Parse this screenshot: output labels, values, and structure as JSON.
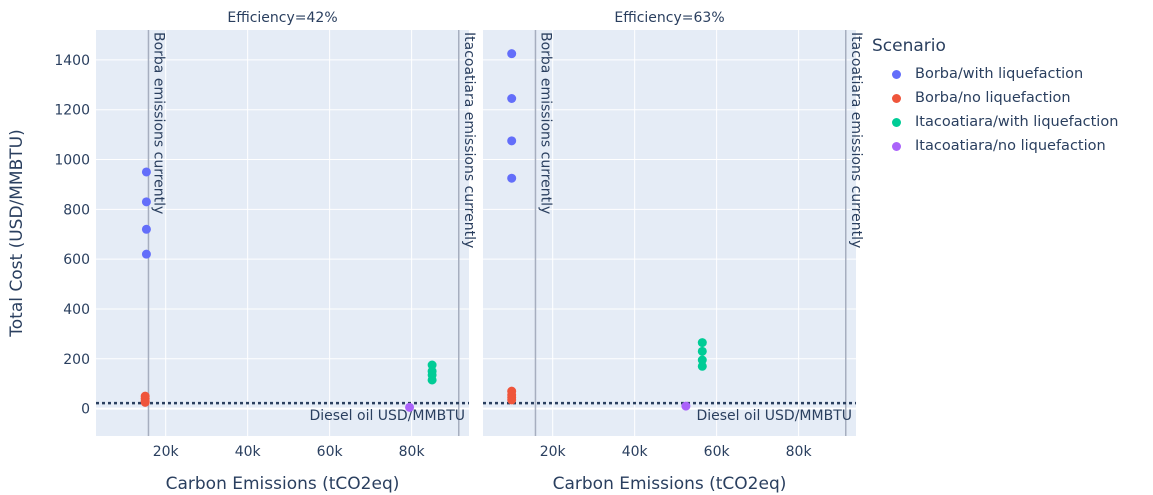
{
  "chart_data": {
    "type": "scatter",
    "ylabel": "Total Cost (USD/MMBTU)",
    "xlabel": "Carbon Emissions (tCO2eq)",
    "x_ticks": [
      20000,
      40000,
      60000,
      80000
    ],
    "x_tick_labels": [
      "20k",
      "40k",
      "60k",
      "80k"
    ],
    "y_ticks": [
      0,
      200,
      400,
      600,
      800,
      1000,
      1200,
      1400
    ],
    "y_tick_labels": [
      "0",
      "200",
      "400",
      "600",
      "800",
      "1000",
      "1200",
      "1400"
    ],
    "xlim": [
      3000,
      94000
    ],
    "ylim": [
      -110,
      1520
    ],
    "grid": true,
    "legend": {
      "title": "Scenario",
      "placement": "right",
      "entries": [
        {
          "name": "Borba/with liquefaction",
          "color": "#636efa"
        },
        {
          "name": "Borba/no liquefaction",
          "color": "#ef553b"
        },
        {
          "name": "Itacoatiara/with liquefaction",
          "color": "#00cc96"
        },
        {
          "name": "Itacoatiara/no liquefaction",
          "color": "#ab63fa"
        }
      ]
    },
    "panels": [
      {
        "title": "Efficiency=42%",
        "series": [
          {
            "name": "Borba/with liquefaction",
            "color": "#636efa",
            "x": [
              15300,
              15300,
              15300,
              15300
            ],
            "y": [
              950,
              830,
              720,
              620
            ]
          },
          {
            "name": "Borba/no liquefaction",
            "color": "#ef553b",
            "x": [
              15000,
              15000,
              15000,
              15000
            ],
            "y": [
              50,
              40,
              30,
              25
            ]
          },
          {
            "name": "Itacoatiara/with liquefaction",
            "color": "#00cc96",
            "x": [
              85000,
              85000,
              85000,
              85000
            ],
            "y": [
              175,
              150,
              135,
              115
            ]
          },
          {
            "name": "Itacoatiara/no liquefaction",
            "color": "#ab63fa",
            "x": [
              79500
            ],
            "y": [
              5
            ]
          }
        ]
      },
      {
        "title": "Efficiency=63%",
        "series": [
          {
            "name": "Borba/with liquefaction",
            "color": "#636efa",
            "x": [
              10000,
              10000,
              10000,
              10000
            ],
            "y": [
              1425,
              1245,
              1075,
              925
            ]
          },
          {
            "name": "Borba/no liquefaction",
            "color": "#ef553b",
            "x": [
              10000,
              10000,
              10000,
              10000
            ],
            "y": [
              70,
              55,
              45,
              35
            ]
          },
          {
            "name": "Itacoatiara/with liquefaction",
            "color": "#00cc96",
            "x": [
              56500,
              56500,
              56500,
              56500
            ],
            "y": [
              265,
              230,
              195,
              170
            ]
          },
          {
            "name": "Itacoatiara/no liquefaction",
            "color": "#ab63fa",
            "x": [
              52500
            ],
            "y": [
              10
            ]
          }
        ]
      }
    ],
    "vlines": [
      {
        "x": 15800,
        "label": "Borba emissions currently"
      },
      {
        "x": 91500,
        "label": "Itacoatiara emissions currently"
      }
    ],
    "hline": {
      "y": 22,
      "label": "Diesel oil USD/MMBTU"
    }
  }
}
